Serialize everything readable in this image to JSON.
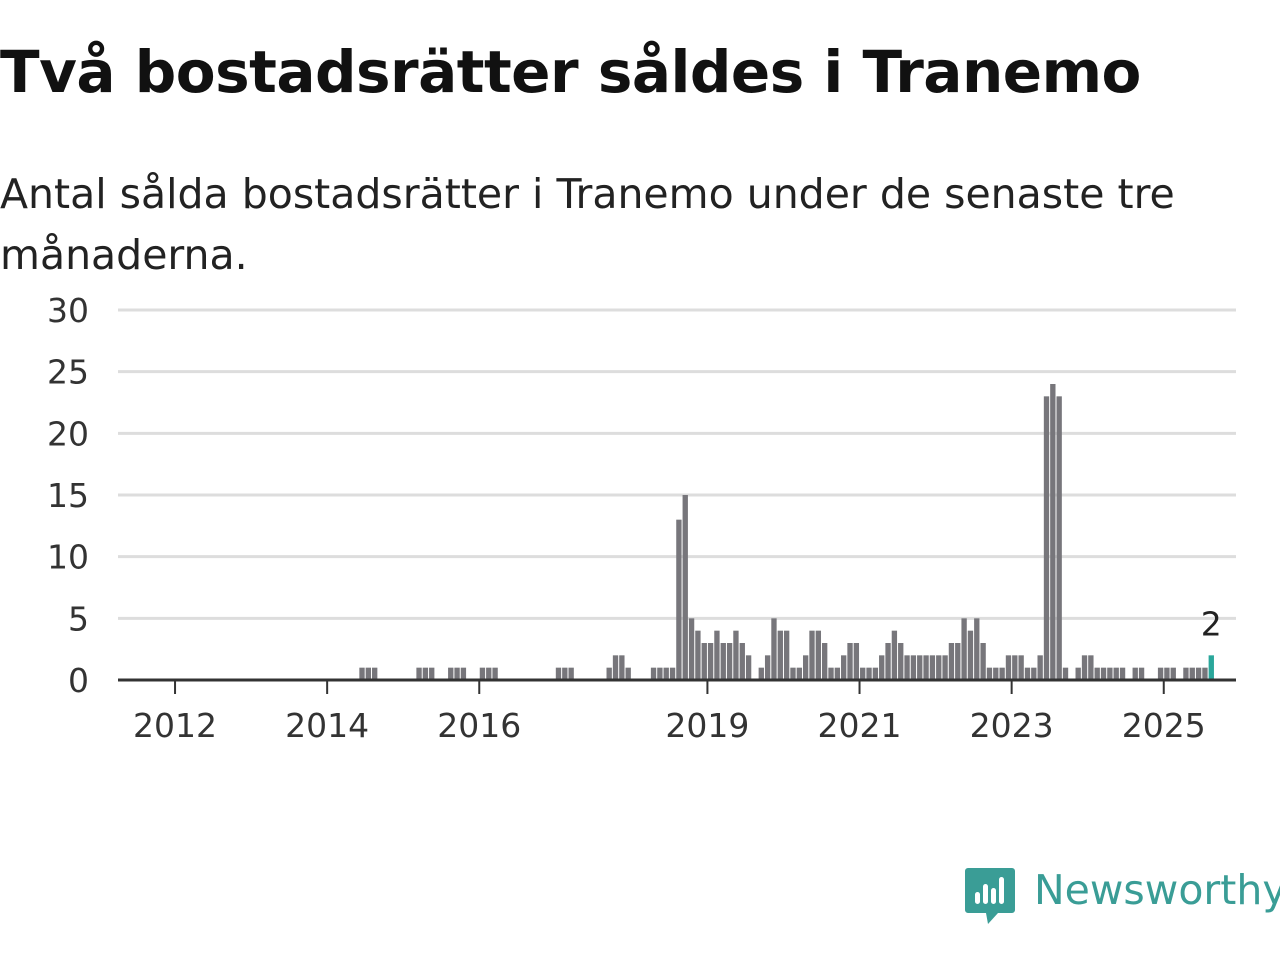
{
  "title": "Två bostadsrätter såldes i Tranemo",
  "subtitle": "Antal sålda bostadsrätter i Tranemo under de senaste tre månaderna.",
  "brand": {
    "name": "Newsworthy",
    "color": "#3a9d96"
  },
  "colors": {
    "bar": "#77767b",
    "highlight": "#2aa79b",
    "grid": "#dddddd",
    "axis": "#333333"
  },
  "chart_data": {
    "type": "bar",
    "title": "Två bostadsrätter såldes i Tranemo",
    "subtitle": "Antal sålda bostadsrätter i Tranemo under de senaste tre månaderna.",
    "xlabel": "",
    "ylabel": "",
    "ylim": [
      0,
      30
    ],
    "xlim": [
      2011.25,
      2025.95
    ],
    "yticks": [
      0,
      5,
      10,
      15,
      20,
      25,
      30
    ],
    "xticks": [
      "2012",
      "2014",
      "2016",
      "2019",
      "2021",
      "2023",
      "2025"
    ],
    "grid": true,
    "legend": "none",
    "series": [
      {
        "values": [
          [
            "2014-06",
            1
          ],
          [
            "2014-07",
            1
          ],
          [
            "2014-08",
            1
          ],
          [
            "2015-03",
            1
          ],
          [
            "2015-04",
            1
          ],
          [
            "2015-05",
            1
          ],
          [
            "2015-08",
            1
          ],
          [
            "2015-09",
            1
          ],
          [
            "2015-10",
            1
          ],
          [
            "2016-01",
            1
          ],
          [
            "2016-02",
            1
          ],
          [
            "2016-03",
            1
          ],
          [
            "2017-01",
            1
          ],
          [
            "2017-02",
            1
          ],
          [
            "2017-03",
            1
          ],
          [
            "2017-09",
            1
          ],
          [
            "2017-10",
            2
          ],
          [
            "2017-11",
            2
          ],
          [
            "2017-12",
            1
          ],
          [
            "2018-04",
            1
          ],
          [
            "2018-05",
            1
          ],
          [
            "2018-06",
            1
          ],
          [
            "2018-07",
            1
          ],
          [
            "2018-08",
            13
          ],
          [
            "2018-09",
            15
          ],
          [
            "2018-10",
            5
          ],
          [
            "2018-11",
            4
          ],
          [
            "2018-12",
            3
          ],
          [
            "2019-01",
            3
          ],
          [
            "2019-02",
            4
          ],
          [
            "2019-03",
            3
          ],
          [
            "2019-04",
            3
          ],
          [
            "2019-05",
            4
          ],
          [
            "2019-06",
            3
          ],
          [
            "2019-07",
            2
          ],
          [
            "2019-09",
            1
          ],
          [
            "2019-10",
            2
          ],
          [
            "2019-11",
            5
          ],
          [
            "2019-12",
            4
          ],
          [
            "2020-01",
            4
          ],
          [
            "2020-02",
            1
          ],
          [
            "2020-03",
            1
          ],
          [
            "2020-04",
            2
          ],
          [
            "2020-05",
            4
          ],
          [
            "2020-06",
            4
          ],
          [
            "2020-07",
            3
          ],
          [
            "2020-08",
            1
          ],
          [
            "2020-09",
            1
          ],
          [
            "2020-10",
            2
          ],
          [
            "2020-11",
            3
          ],
          [
            "2020-12",
            3
          ],
          [
            "2021-01",
            1
          ],
          [
            "2021-02",
            1
          ],
          [
            "2021-03",
            1
          ],
          [
            "2021-04",
            2
          ],
          [
            "2021-05",
            3
          ],
          [
            "2021-06",
            4
          ],
          [
            "2021-07",
            3
          ],
          [
            "2021-08",
            2
          ],
          [
            "2021-09",
            2
          ],
          [
            "2021-10",
            2
          ],
          [
            "2021-11",
            2
          ],
          [
            "2021-12",
            2
          ],
          [
            "2022-01",
            2
          ],
          [
            "2022-02",
            2
          ],
          [
            "2022-03",
            3
          ],
          [
            "2022-04",
            3
          ],
          [
            "2022-05",
            5
          ],
          [
            "2022-06",
            4
          ],
          [
            "2022-07",
            5
          ],
          [
            "2022-08",
            3
          ],
          [
            "2022-09",
            1
          ],
          [
            "2022-10",
            1
          ],
          [
            "2022-11",
            1
          ],
          [
            "2022-12",
            2
          ],
          [
            "2023-01",
            2
          ],
          [
            "2023-02",
            2
          ],
          [
            "2023-03",
            1
          ],
          [
            "2023-04",
            1
          ],
          [
            "2023-05",
            2
          ],
          [
            "2023-06",
            23
          ],
          [
            "2023-07",
            24
          ],
          [
            "2023-08",
            23
          ],
          [
            "2023-09",
            1
          ],
          [
            "2023-11",
            1
          ],
          [
            "2023-12",
            2
          ],
          [
            "2024-01",
            2
          ],
          [
            "2024-02",
            1
          ],
          [
            "2024-03",
            1
          ],
          [
            "2024-04",
            1
          ],
          [
            "2024-05",
            1
          ],
          [
            "2024-06",
            1
          ],
          [
            "2024-08",
            1
          ],
          [
            "2024-09",
            1
          ],
          [
            "2024-12",
            1
          ],
          [
            "2025-01",
            1
          ],
          [
            "2025-02",
            1
          ],
          [
            "2025-04",
            1
          ],
          [
            "2025-05",
            1
          ],
          [
            "2025-06",
            1
          ],
          [
            "2025-07",
            1
          ]
        ]
      }
    ],
    "highlight": {
      "x": "2025-08",
      "value": 2,
      "label": "2"
    }
  }
}
